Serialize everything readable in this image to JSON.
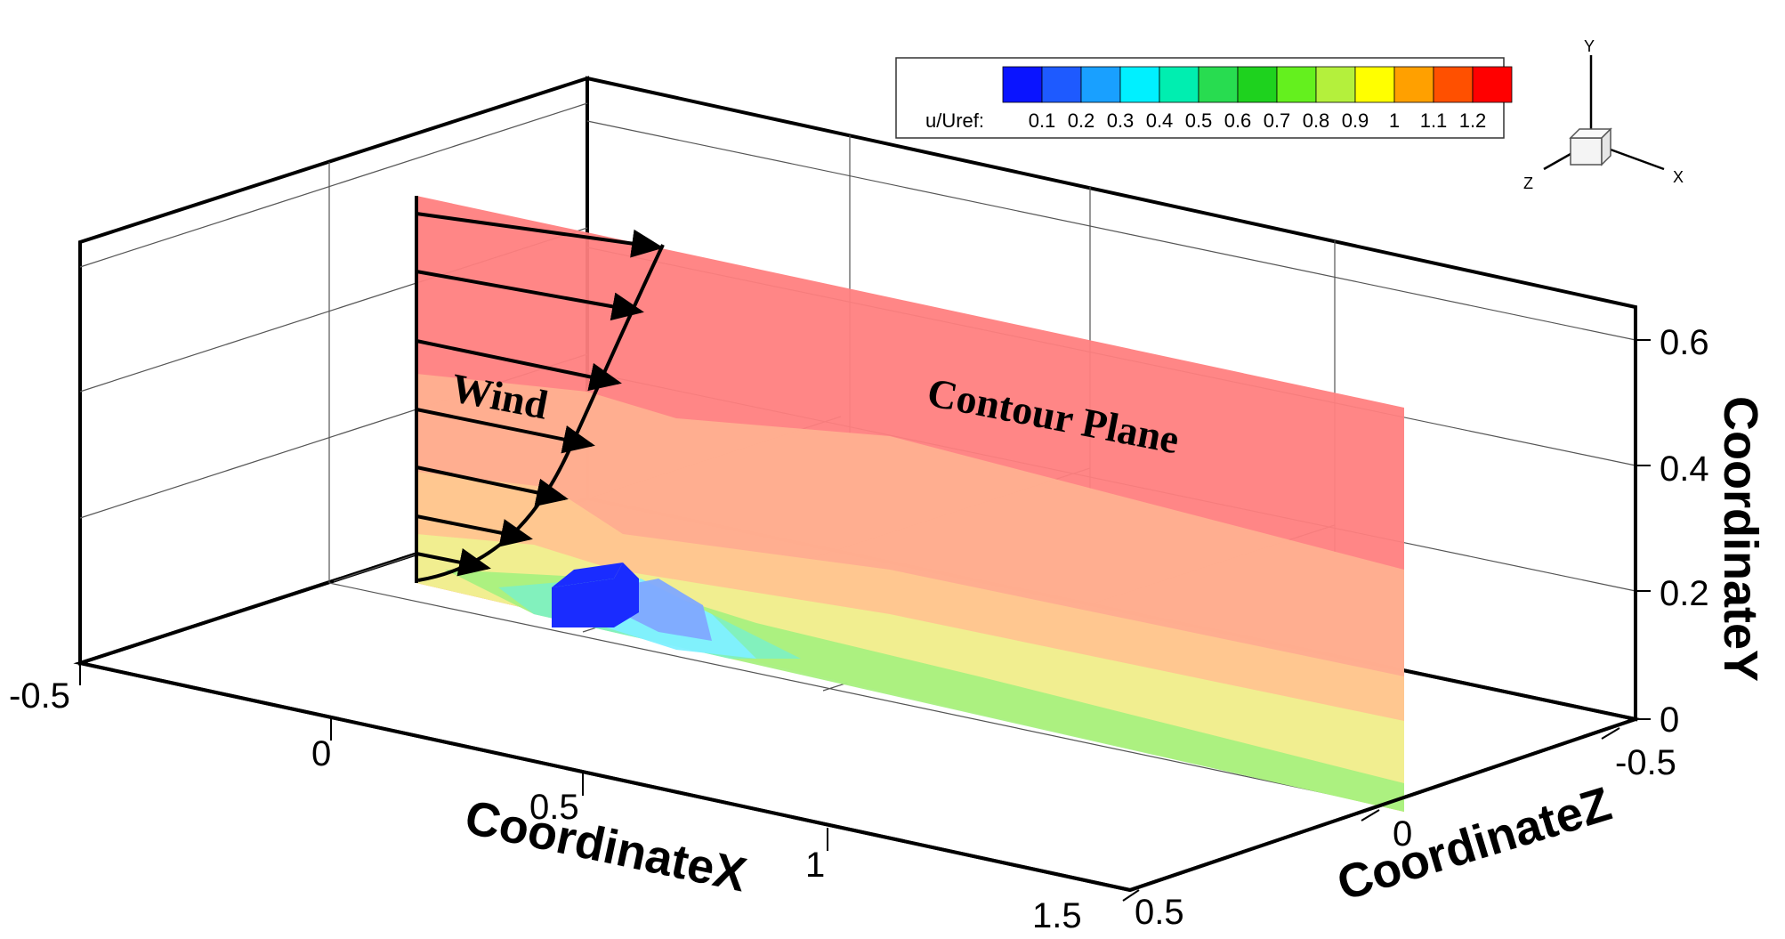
{
  "labels": {
    "wind": "Wind",
    "contour_plane": "Contour Plane"
  },
  "axes": {
    "x": {
      "title": "CoordinateX",
      "ticks": [
        "-0.5",
        "0",
        "0.5",
        "1",
        "1.5"
      ]
    },
    "y": {
      "title": "CoordinateY",
      "ticks": [
        "0",
        "0.2",
        "0.4",
        "0.6"
      ]
    },
    "z": {
      "title": "CoordinateZ",
      "ticks": [
        "-0.5",
        "0",
        "0.5"
      ]
    }
  },
  "legend": {
    "variable": "u/Uref:",
    "levels": [
      "0.1",
      "0.2",
      "0.3",
      "0.4",
      "0.5",
      "0.6",
      "0.7",
      "0.8",
      "0.9",
      "1",
      "1.1",
      "1.2"
    ],
    "colors": [
      "#0a14ff",
      "#1e5aff",
      "#19a0ff",
      "#00f0ff",
      "#00eeb0",
      "#28dc50",
      "#1ed21e",
      "#64f01e",
      "#b4f03c",
      "#ffff00",
      "#ffa000",
      "#ff5000",
      "#ff0000"
    ]
  },
  "triad": {
    "x": "X",
    "y": "Y",
    "z": "Z"
  },
  "colors": {
    "plane_top": "#ff8080",
    "plane_mid": "#ffb090",
    "plane_orange": "#ffc890",
    "plane_yellow": "#f0f090",
    "plane_green": "#a8f080",
    "plane_teal": "#80f0c0",
    "plane_cyan": "#80f0ff",
    "plane_blue": "#80a8ff",
    "building": "#1a2cff"
  }
}
